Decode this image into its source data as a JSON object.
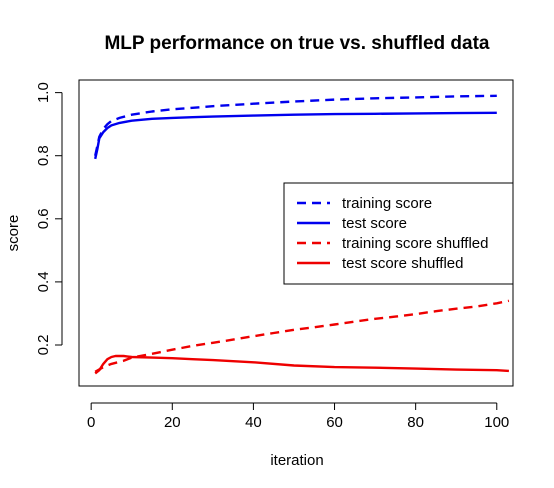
{
  "chart_data": {
    "type": "line",
    "title": "MLP performance on true vs. shuffled data",
    "xlabel": "iteration",
    "ylabel": "score",
    "xlim": [
      -3,
      104
    ],
    "ylim": [
      0.07,
      1.04
    ],
    "xticks": [
      0,
      20,
      40,
      60,
      80,
      100
    ],
    "yticks": [
      0.2,
      0.4,
      0.6,
      0.8,
      1.0
    ],
    "ytick_labels": [
      "0.2",
      "0.4",
      "0.6",
      "0.8",
      "1.0"
    ],
    "grid": false,
    "legend_position": "right",
    "series": [
      {
        "name": "training score",
        "color": "#0000ee",
        "dash": "dashed",
        "x": [
          1,
          1.5,
          2,
          3,
          4,
          5,
          7,
          10,
          15,
          20,
          25,
          30,
          40,
          50,
          60,
          70,
          80,
          90,
          100
        ],
        "y": [
          0.8,
          0.83,
          0.86,
          0.885,
          0.9,
          0.91,
          0.92,
          0.93,
          0.94,
          0.947,
          0.952,
          0.957,
          0.965,
          0.972,
          0.978,
          0.982,
          0.985,
          0.988,
          0.99
        ]
      },
      {
        "name": "test score",
        "color": "#0000ee",
        "dash": "solid",
        "x": [
          1,
          1.5,
          2,
          3,
          4,
          5,
          7,
          10,
          15,
          20,
          25,
          30,
          40,
          50,
          60,
          70,
          80,
          90,
          100
        ],
        "y": [
          0.79,
          0.82,
          0.855,
          0.875,
          0.888,
          0.896,
          0.904,
          0.911,
          0.917,
          0.92,
          0.922,
          0.924,
          0.927,
          0.93,
          0.932,
          0.933,
          0.934,
          0.935,
          0.936
        ]
      },
      {
        "name": "training score shuffled",
        "color": "#ee0000",
        "dash": "dashed",
        "x": [
          1,
          3,
          5,
          8,
          10,
          15,
          20,
          25,
          30,
          35,
          40,
          45,
          50,
          55,
          60,
          65,
          70,
          75,
          80,
          85,
          90,
          95,
          100,
          103
        ],
        "y": [
          0.115,
          0.13,
          0.14,
          0.15,
          0.16,
          0.172,
          0.185,
          0.197,
          0.207,
          0.217,
          0.228,
          0.238,
          0.248,
          0.256,
          0.265,
          0.274,
          0.283,
          0.29,
          0.298,
          0.307,
          0.315,
          0.322,
          0.332,
          0.34
        ]
      },
      {
        "name": "test score shuffled",
        "color": "#ee0000",
        "dash": "solid",
        "x": [
          1,
          2,
          3,
          4,
          5,
          6,
          8,
          10,
          15,
          20,
          25,
          30,
          40,
          50,
          60,
          70,
          80,
          90,
          100,
          103
        ],
        "y": [
          0.11,
          0.12,
          0.14,
          0.155,
          0.162,
          0.165,
          0.165,
          0.162,
          0.16,
          0.158,
          0.155,
          0.152,
          0.145,
          0.135,
          0.13,
          0.128,
          0.125,
          0.122,
          0.12,
          0.118
        ]
      }
    ]
  }
}
